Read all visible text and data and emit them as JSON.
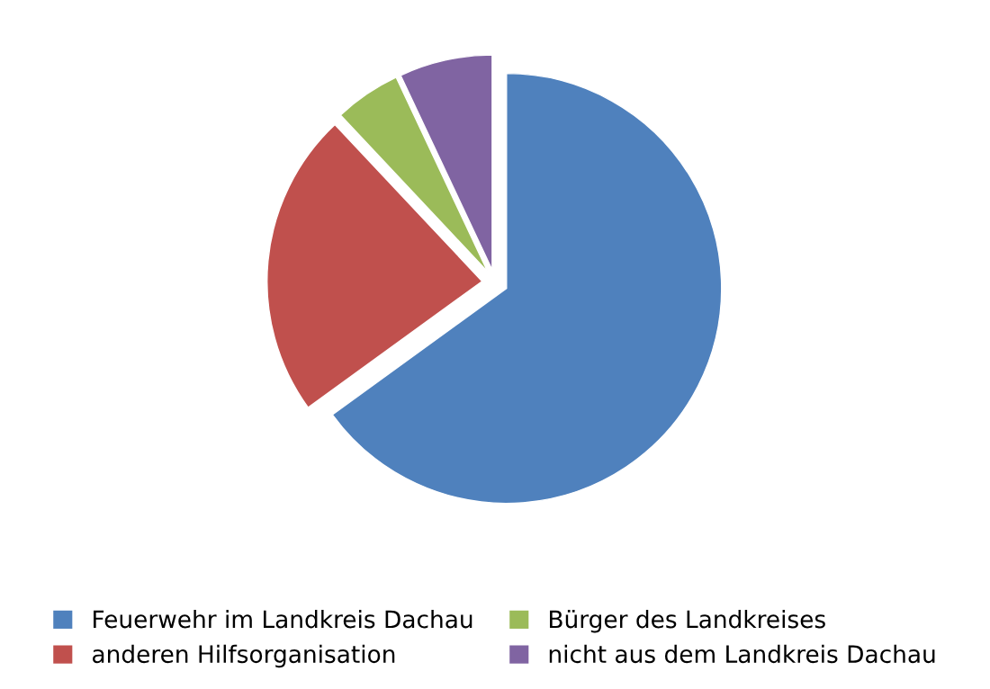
{
  "chart_data": {
    "type": "pie",
    "categories": [
      "Feuerwehr im Landkreis Dachau",
      "anderen Hilfsorganisation",
      "Bürger des Landkreises",
      "nicht aus dem Landkreis Dachau"
    ],
    "values": [
      65,
      23,
      5,
      7
    ],
    "colors": [
      "#4f81bd",
      "#c0504d",
      "#9bbb59",
      "#8064a2"
    ],
    "legend": "bottom"
  }
}
